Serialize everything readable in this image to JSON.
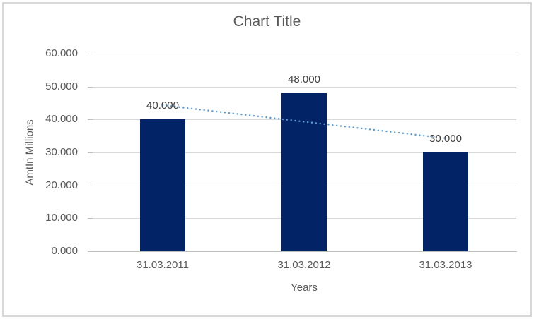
{
  "chart_data": {
    "type": "bar",
    "title": "Chart Title",
    "xlabel": "Years",
    "ylabel": "AmtIn Millions",
    "categories": [
      "31.03.2011",
      "31.03.2012",
      "31.03.2013"
    ],
    "values": [
      40,
      48,
      30
    ],
    "value_labels": [
      "40.000",
      "48.000",
      "30.000"
    ],
    "ylim": [
      0,
      60
    ],
    "ytick_values": [
      0,
      10,
      20,
      30,
      40,
      50,
      60
    ],
    "ytick_labels": [
      "0.000",
      "10.000",
      "20.000",
      "30.000",
      "40.000",
      "50.000",
      "60.000"
    ],
    "grid": true,
    "legend": "none",
    "bar_color": "#022365",
    "trendline": {
      "type": "linear",
      "style": "dotted",
      "color": "#5B9BD5",
      "start_value": 44.333,
      "end_value": 34.333
    }
  },
  "colors": {
    "background": "#FFFFFF",
    "border": "#D8D8D8",
    "gridline": "#D9D9D9",
    "axis_line": "#BFBFBF",
    "title_text": "#595959",
    "label_text": "#595959",
    "data_label_text": "#404040"
  }
}
